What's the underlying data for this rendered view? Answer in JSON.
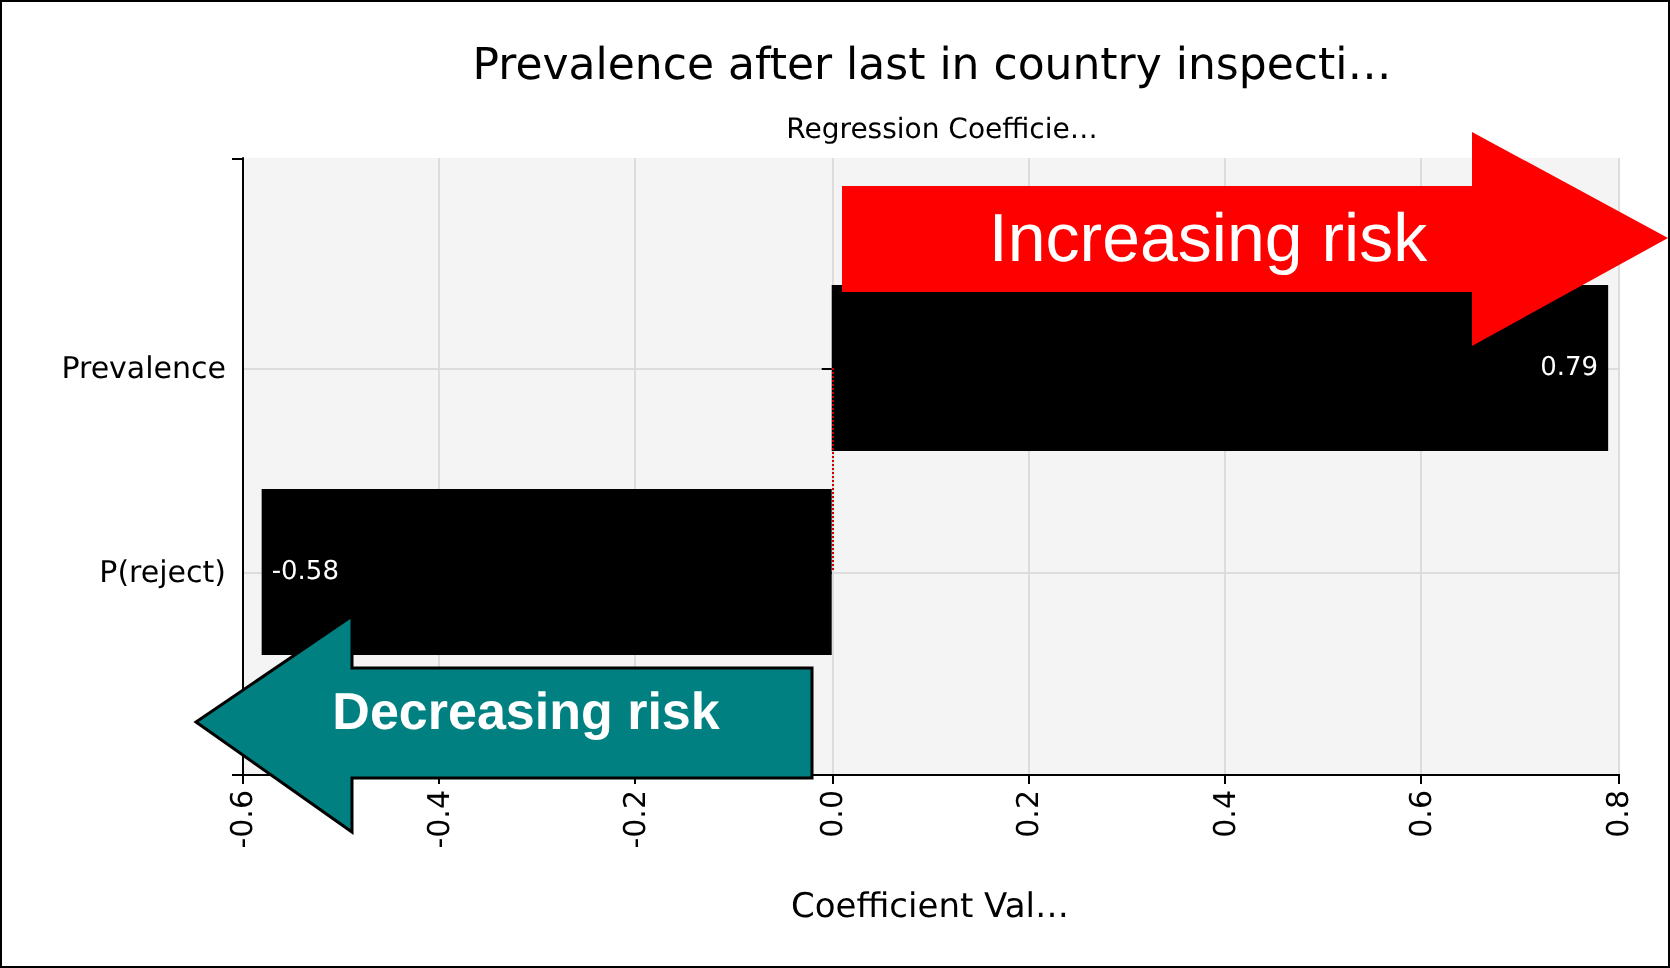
{
  "chart_data": {
    "type": "bar",
    "orientation": "horizontal",
    "title": "Prevalence after last in country inspecti…",
    "subtitle": "Regression Coefficie…",
    "xlabel": "Coefficient Val…",
    "categories": [
      "Prevalence",
      "P(reject)"
    ],
    "values": [
      0.79,
      -0.58
    ],
    "colors": [
      "#000000",
      "#000000"
    ],
    "xlim": [
      -0.6,
      0.8
    ],
    "xticks": [
      -0.6,
      -0.4,
      -0.2,
      {
        "value": 0,
        "label": "0.0"
      },
      0.2,
      0.4,
      0.6,
      0.8
    ],
    "data_labels": true,
    "grid": true,
    "ref_lines": [
      {
        "axis": "x",
        "value": 0,
        "color": "#cc0000",
        "line_style": "dotted"
      }
    ],
    "annotations": [
      "Increasing risk",
      "Decreasing risk"
    ]
  }
}
